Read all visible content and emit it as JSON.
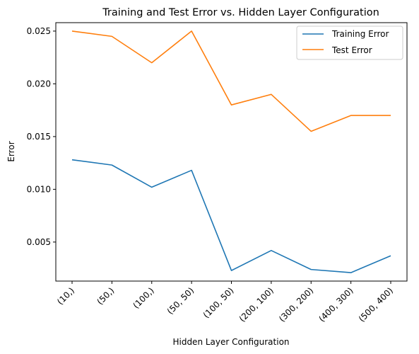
{
  "chart_data": {
    "type": "line",
    "title": "Training and Test Error vs. Hidden Layer Configuration",
    "xlabel": "Hidden Layer Configuration",
    "ylabel": "Error",
    "categories": [
      "(10,)",
      "(50,)",
      "(100,)",
      "(50, 50)",
      "(100, 50)",
      "(200, 100)",
      "(300, 200)",
      "(400, 300)",
      "(500, 400)"
    ],
    "ylim": [
      0.0013,
      0.0258
    ],
    "yticks": [
      0.005,
      0.01,
      0.015,
      0.02,
      0.025
    ],
    "ytick_labels": [
      "0.005",
      "0.010",
      "0.015",
      "0.020",
      "0.025"
    ],
    "series": [
      {
        "name": "Training Error",
        "color": "#1f77b4",
        "values": [
          0.0128,
          0.0123,
          0.0102,
          0.0118,
          0.0023,
          0.0042,
          0.0024,
          0.0021,
          0.0037
        ]
      },
      {
        "name": "Test Error",
        "color": "#ff7f0e",
        "values": [
          0.025,
          0.0245,
          0.022,
          0.025,
          0.018,
          0.019,
          0.0155,
          0.017,
          0.017
        ]
      }
    ],
    "legend_position": "top-right",
    "grid": false,
    "xtick_rotation": 45
  }
}
